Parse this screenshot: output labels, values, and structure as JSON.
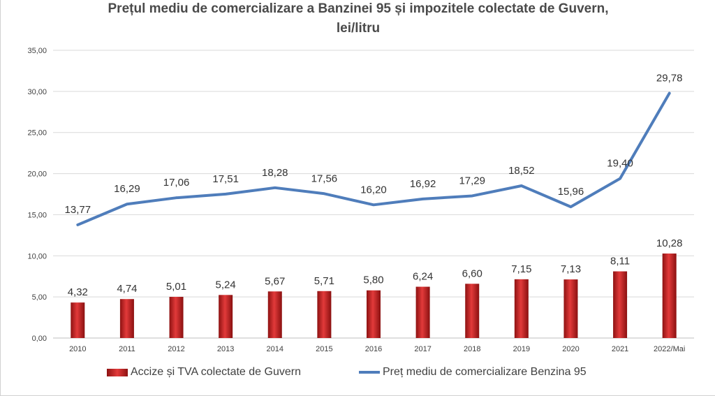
{
  "chart_data": {
    "type": "bar+line",
    "title_line1": "Prețul mediu de comercializare a Banzinei 95 și impozitele colectate de Guvern,",
    "title_line2": "lei/litru",
    "categories": [
      "2010",
      "2011",
      "2012",
      "2013",
      "2014",
      "2015",
      "2016",
      "2017",
      "2018",
      "2019",
      "2020",
      "2021",
      "2022/Mai"
    ],
    "series": [
      {
        "name": "Accize și TVA colectate de Guvern",
        "kind": "bar",
        "color": "#c0282b",
        "values": [
          4.32,
          4.74,
          5.01,
          5.24,
          5.67,
          5.71,
          5.8,
          6.24,
          6.6,
          7.15,
          7.13,
          8.11,
          10.28
        ],
        "labels": [
          "4,32",
          "4,74",
          "5,01",
          "5,24",
          "5,67",
          "5,71",
          "5,80",
          "6,24",
          "6,60",
          "7,15",
          "7,13",
          "8,11",
          "10,28"
        ]
      },
      {
        "name": "Preț mediu de comercializare Benzina 95",
        "kind": "line",
        "color": "#4f7dbb",
        "values": [
          13.77,
          16.29,
          17.06,
          17.51,
          18.28,
          17.56,
          16.2,
          16.92,
          17.29,
          18.52,
          15.96,
          19.4,
          29.78
        ],
        "labels": [
          "13,77",
          "16,29",
          "17,06",
          "17,51",
          "18,28",
          "17,56",
          "16,20",
          "16,92",
          "17,29",
          "18,52",
          "15,96",
          "19,40",
          "29,78"
        ]
      }
    ],
    "ylim": [
      0,
      35
    ],
    "yticks": [
      0,
      5,
      10,
      15,
      20,
      25,
      30,
      35
    ],
    "ytick_labels": [
      "0,00",
      "5,00",
      "10,00",
      "15,00",
      "20,00",
      "25,00",
      "30,00",
      "35,00"
    ],
    "grid": true,
    "legend_position": "bottom"
  }
}
